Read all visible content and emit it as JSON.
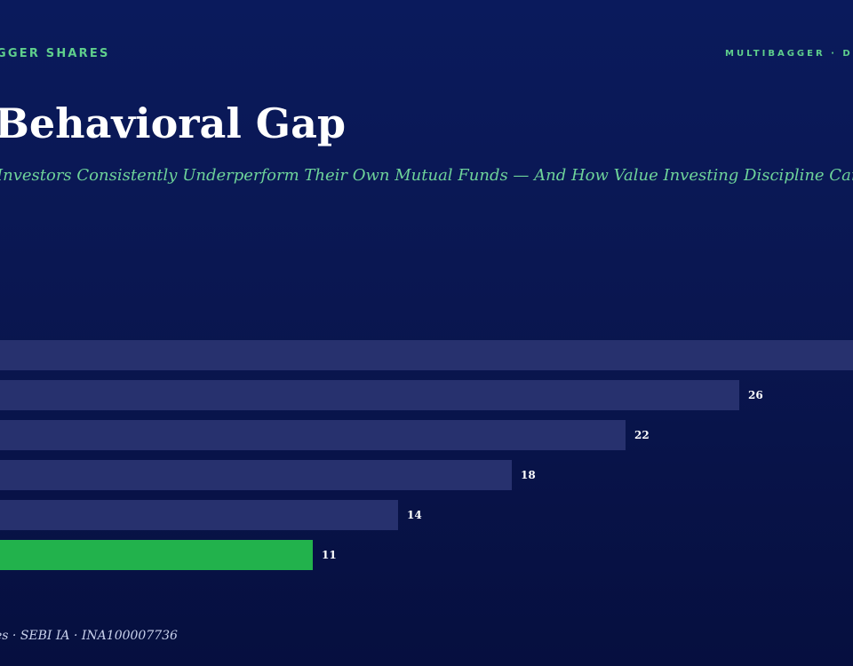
{
  "header": {
    "brand_left": "GGER SHARES",
    "brand_right": "MULTIBAGGER · D"
  },
  "title": "Behavioral Gap",
  "subtitle": "Investors Consistently Underperform Their Own Mutual Funds — And How Value Investing Discipline Can C",
  "footer": "es · SEBI IA · INA100007736",
  "colors": {
    "bar_default": "#27316e",
    "bar_highlight": "#22b24c",
    "value_label": "#ffffff"
  },
  "chart_data": {
    "type": "bar",
    "orientation": "horizontal",
    "values": [
      30,
      26,
      22,
      18,
      14,
      11
    ],
    "value_labels": [
      "",
      "26",
      "22",
      "18",
      "14",
      "11"
    ],
    "highlight_index": 5,
    "xlim": [
      0,
      30
    ],
    "grid": false,
    "legend": "none"
  }
}
